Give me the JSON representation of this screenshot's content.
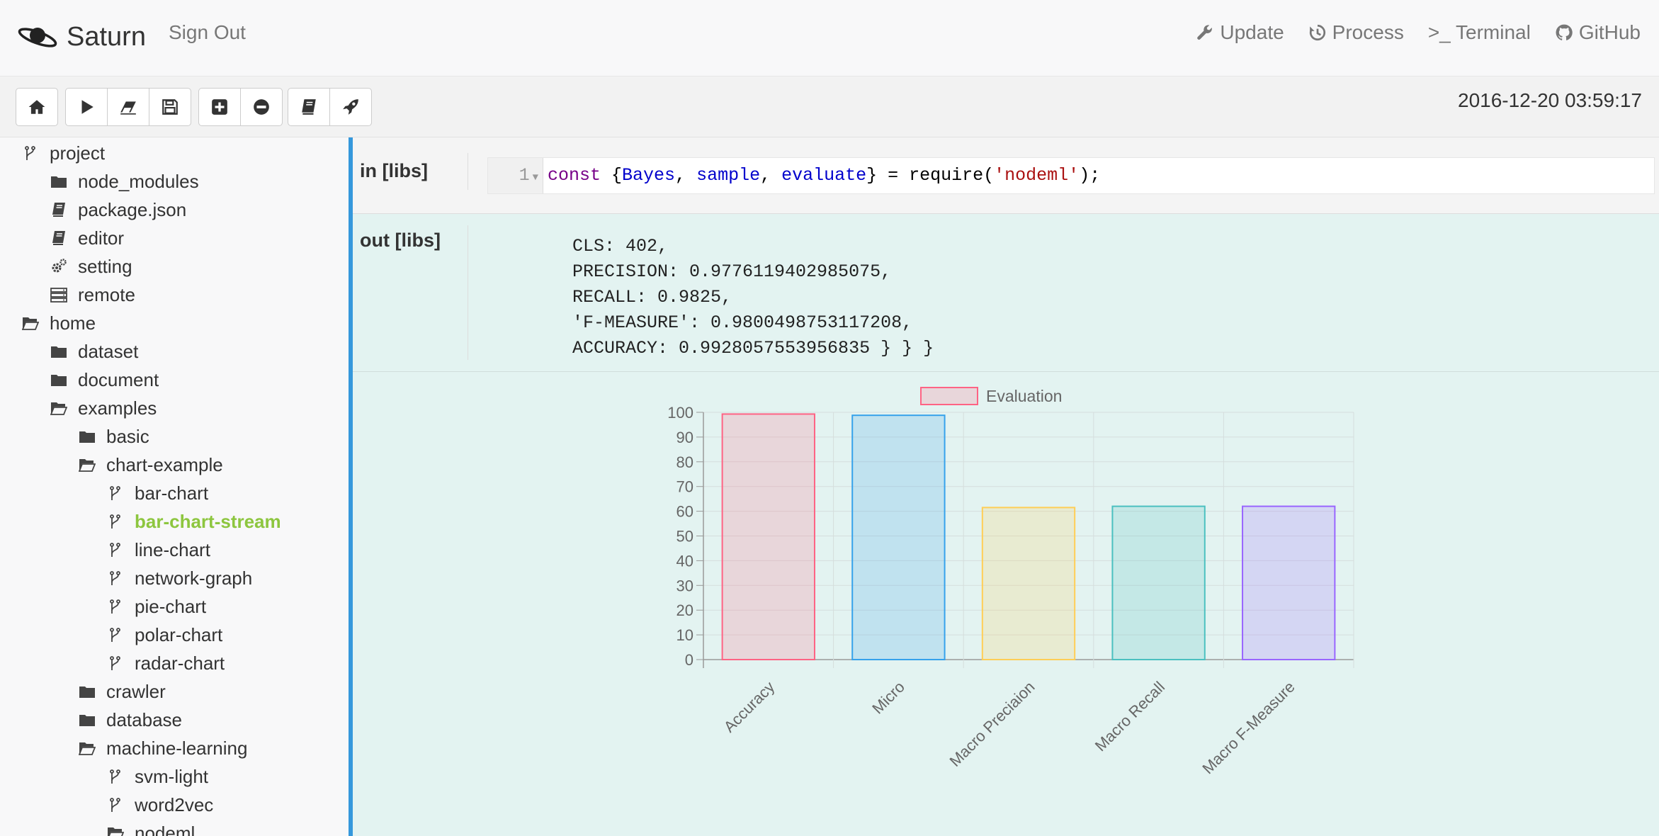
{
  "navbar": {
    "brand": "Saturn",
    "signout": "Sign Out",
    "links": [
      {
        "label": "Update",
        "icon": "wrench-icon"
      },
      {
        "label": "Process",
        "icon": "history-icon"
      },
      {
        "label": ">_ Terminal",
        "icon": "terminal-icon"
      },
      {
        "label": "GitHub",
        "icon": "github-icon"
      }
    ]
  },
  "toolbar": {
    "buttons": [
      "home",
      "play",
      "eraser",
      "save",
      "plus-square",
      "minus-circle",
      "book",
      "rocket"
    ],
    "timestamp": "2016-12-20 03:59:17"
  },
  "sidebar": {
    "items": [
      {
        "label": "project",
        "icon": "branch-icon",
        "depth": 0
      },
      {
        "label": "node_modules",
        "icon": "folder-icon",
        "depth": 1
      },
      {
        "label": "package.json",
        "icon": "book-icon",
        "depth": 1
      },
      {
        "label": "editor",
        "icon": "book-icon",
        "depth": 1
      },
      {
        "label": "setting",
        "icon": "gears-icon",
        "depth": 1
      },
      {
        "label": "remote",
        "icon": "server-icon",
        "depth": 1
      },
      {
        "label": "home",
        "icon": "folder-open-icon",
        "depth": 0
      },
      {
        "label": "dataset",
        "icon": "folder-icon",
        "depth": 1
      },
      {
        "label": "document",
        "icon": "folder-icon",
        "depth": 1
      },
      {
        "label": "examples",
        "icon": "folder-open-icon",
        "depth": 1
      },
      {
        "label": "basic",
        "icon": "folder-icon",
        "depth": 2
      },
      {
        "label": "chart-example",
        "icon": "folder-open-icon",
        "depth": 2
      },
      {
        "label": "bar-chart",
        "icon": "branch-icon",
        "depth": 3
      },
      {
        "label": "bar-chart-stream",
        "icon": "branch-icon",
        "depth": 3,
        "active": true
      },
      {
        "label": "line-chart",
        "icon": "branch-icon",
        "depth": 3
      },
      {
        "label": "network-graph",
        "icon": "branch-icon",
        "depth": 3
      },
      {
        "label": "pie-chart",
        "icon": "branch-icon",
        "depth": 3
      },
      {
        "label": "polar-chart",
        "icon": "branch-icon",
        "depth": 3
      },
      {
        "label": "radar-chart",
        "icon": "branch-icon",
        "depth": 3
      },
      {
        "label": "crawler",
        "icon": "folder-icon",
        "depth": 2
      },
      {
        "label": "database",
        "icon": "folder-icon",
        "depth": 2
      },
      {
        "label": "machine-learning",
        "icon": "folder-open-icon",
        "depth": 2
      },
      {
        "label": "svm-light",
        "icon": "branch-icon",
        "depth": 3
      },
      {
        "label": "word2vec",
        "icon": "branch-icon",
        "depth": 3
      },
      {
        "label": "nodeml",
        "icon": "folder-open-icon",
        "depth": 3
      }
    ]
  },
  "cell": {
    "in_label": "in [libs]",
    "out_label": "out [libs]",
    "line_number": "1",
    "code": {
      "kw": "const",
      "open": " {",
      "v1": "Bayes",
      "c1": ", ",
      "v2": "sample",
      "c2": ", ",
      "v3": "evaluate",
      "close": "} = require(",
      "str": "'nodeml'",
      "end": ");"
    },
    "output_lines": [
      "CLS: 402,",
      "PRECISION: 0.9776119402985075,",
      "RECALL: 0.9825,",
      "'F-MEASURE': 0.9800498753117208,",
      "ACCURACY: 0.9928057553956835 } } }"
    ]
  },
  "chart_data": {
    "type": "bar",
    "categories": [
      "Accuracy",
      "Micro",
      "Macro Preciaion",
      "Macro Recall",
      "Macro F-Measure"
    ],
    "series": [
      {
        "name": "Evaluation",
        "values": [
          99.3,
          98.8,
          61.5,
          62.0,
          62.0
        ]
      }
    ],
    "ylim": [
      0,
      100
    ],
    "yticks": [
      0,
      10,
      20,
      30,
      40,
      50,
      60,
      70,
      80,
      90,
      100
    ],
    "legend": "top",
    "grid": true,
    "colors": {
      "fill": [
        "rgba(255,99,132,0.2)",
        "rgba(54,162,235,0.2)",
        "rgba(255,206,86,0.2)",
        "rgba(75,192,192,0.2)",
        "rgba(153,102,255,0.2)"
      ],
      "stroke": [
        "#ff6384",
        "#36a2eb",
        "#ffce56",
        "#4bc0c0",
        "#9966ff"
      ]
    }
  }
}
